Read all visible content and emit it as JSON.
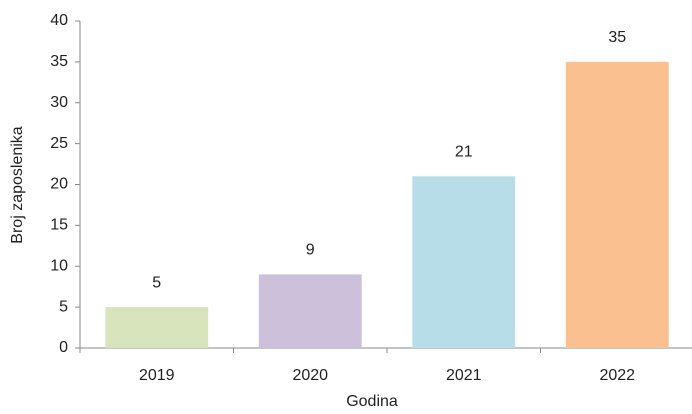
{
  "chart_data": {
    "type": "bar",
    "x_label": "Godina",
    "y_label": "Broj zaposlenika",
    "categories": [
      "2019",
      "2020",
      "2021",
      "2022"
    ],
    "values": [
      5,
      9,
      21,
      35
    ],
    "colors": [
      "#d8e4bc",
      "#ccc0da",
      "#b7dee8",
      "#fac090"
    ],
    "ylim": [
      0,
      40
    ],
    "yticks": [
      0,
      5,
      10,
      15,
      20,
      25,
      30,
      35,
      40
    ],
    "grid": false,
    "data_labels": true
  }
}
